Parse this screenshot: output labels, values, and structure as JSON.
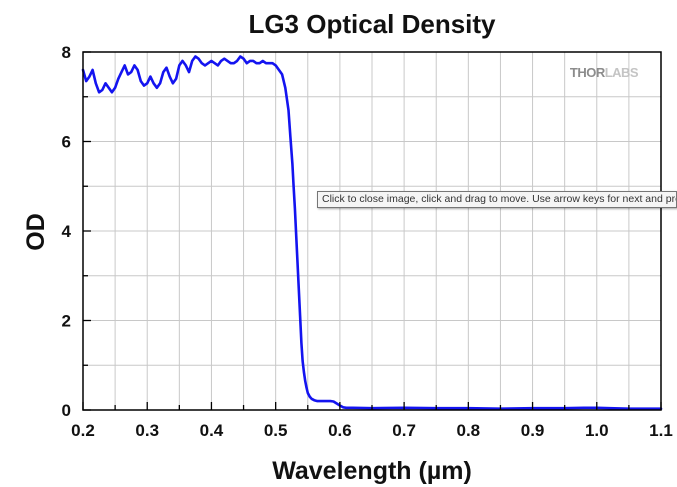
{
  "tooltip": {
    "text": "Click to close image, click and drag to move. Use arrow keys for next and previous."
  },
  "watermark": {
    "part1": "THOR",
    "part2": "LABS",
    "color1": "#8c8c8c",
    "color2": "#c4c4c4"
  },
  "colors": {
    "series": "#1414f0",
    "grid": "#c8c8c8",
    "axis": "#000000"
  },
  "chart_data": {
    "type": "line",
    "title": "LG3 Optical Density",
    "xlabel": "Wavelength (µm)",
    "ylabel": "OD",
    "xlim": [
      0.2,
      1.1
    ],
    "ylim": [
      0,
      8
    ],
    "xticks": [
      0.2,
      0.3,
      0.4,
      0.5,
      0.6,
      0.7,
      0.8,
      0.9,
      1.0,
      1.1
    ],
    "xtick_labels": [
      "0.2",
      "0.3",
      "0.4",
      "0.5",
      "0.6",
      "0.7",
      "0.8",
      "0.9",
      "1.0",
      "1.1"
    ],
    "yticks": [
      0,
      2,
      4,
      6,
      8
    ],
    "ytick_labels": [
      "0",
      "2",
      "4",
      "6",
      "8"
    ],
    "grid": true,
    "legend": "none",
    "series": [
      {
        "x": [
          0.2,
          0.205,
          0.21,
          0.215,
          0.22,
          0.225,
          0.23,
          0.235,
          0.24,
          0.245,
          0.25,
          0.255,
          0.26,
          0.265,
          0.27,
          0.275,
          0.28,
          0.285,
          0.29,
          0.295,
          0.3,
          0.305,
          0.31,
          0.315,
          0.32,
          0.325,
          0.33,
          0.335,
          0.34,
          0.345,
          0.35,
          0.355,
          0.36,
          0.365,
          0.37,
          0.375,
          0.38,
          0.385,
          0.39,
          0.395,
          0.4,
          0.405,
          0.41,
          0.415,
          0.42,
          0.425,
          0.43,
          0.435,
          0.44,
          0.445,
          0.45,
          0.455,
          0.46,
          0.465,
          0.47,
          0.475,
          0.48,
          0.485,
          0.49,
          0.495,
          0.5,
          0.505,
          0.51,
          0.515,
          0.52,
          0.523,
          0.526,
          0.528,
          0.53,
          0.532,
          0.534,
          0.536,
          0.538,
          0.54,
          0.542,
          0.544,
          0.546,
          0.548,
          0.55,
          0.553,
          0.556,
          0.56,
          0.565,
          0.57,
          0.575,
          0.58,
          0.585,
          0.59,
          0.6,
          0.605,
          0.61,
          0.62,
          0.65,
          0.7,
          0.75,
          0.8,
          0.85,
          0.9,
          0.95,
          0.98,
          1.0,
          1.02,
          1.05,
          1.1
        ],
        "y": [
          7.6,
          7.35,
          7.45,
          7.6,
          7.3,
          7.1,
          7.15,
          7.3,
          7.2,
          7.1,
          7.2,
          7.4,
          7.55,
          7.7,
          7.5,
          7.55,
          7.7,
          7.6,
          7.35,
          7.25,
          7.3,
          7.45,
          7.3,
          7.2,
          7.3,
          7.55,
          7.65,
          7.45,
          7.3,
          7.4,
          7.7,
          7.8,
          7.7,
          7.55,
          7.8,
          7.9,
          7.85,
          7.75,
          7.7,
          7.75,
          7.8,
          7.75,
          7.7,
          7.8,
          7.85,
          7.8,
          7.75,
          7.75,
          7.8,
          7.9,
          7.85,
          7.75,
          7.8,
          7.8,
          7.75,
          7.75,
          7.8,
          7.75,
          7.75,
          7.75,
          7.7,
          7.6,
          7.5,
          7.2,
          6.7,
          6.1,
          5.5,
          5.0,
          4.5,
          3.9,
          3.3,
          2.7,
          2.1,
          1.5,
          1.1,
          0.85,
          0.65,
          0.5,
          0.38,
          0.3,
          0.25,
          0.22,
          0.2,
          0.2,
          0.2,
          0.2,
          0.2,
          0.19,
          0.1,
          0.06,
          0.05,
          0.05,
          0.04,
          0.05,
          0.04,
          0.04,
          0.03,
          0.04,
          0.04,
          0.05,
          0.05,
          0.04,
          0.03,
          0.03
        ]
      }
    ]
  }
}
